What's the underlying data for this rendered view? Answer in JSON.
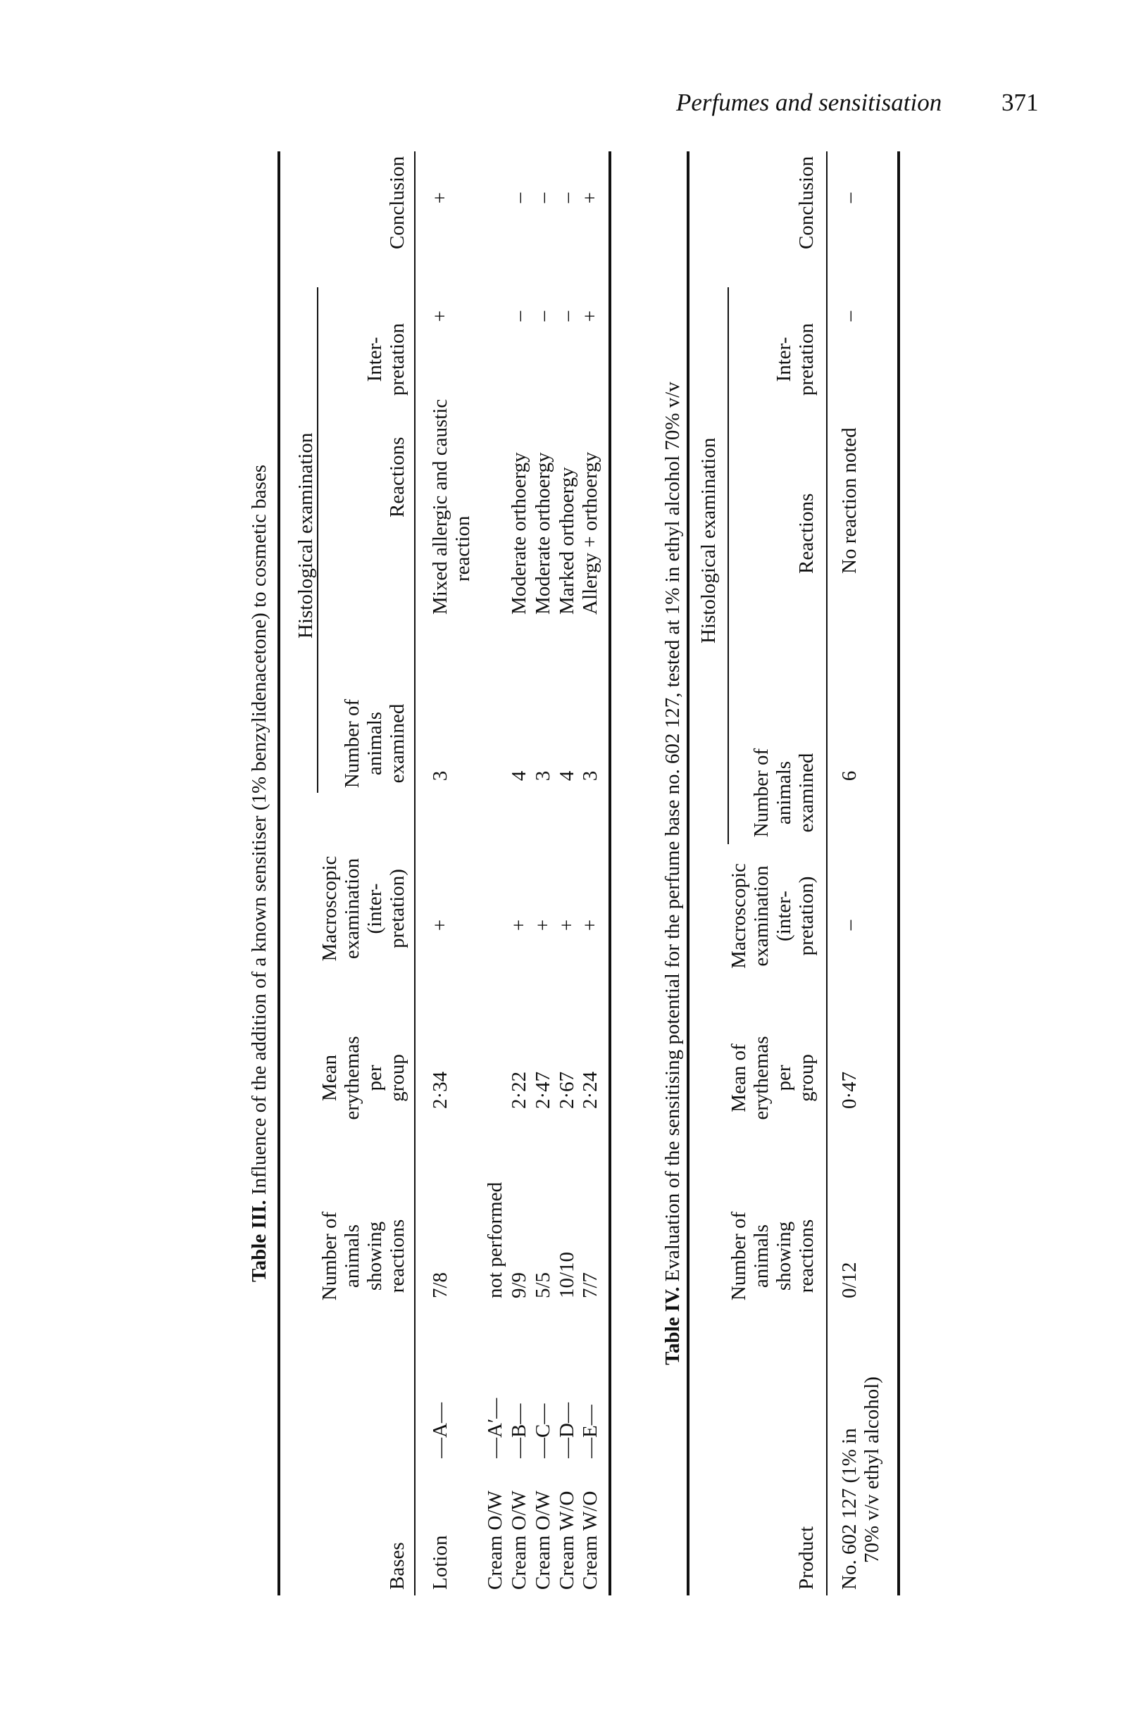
{
  "running_header": {
    "title": "Perfumes and sensitisation",
    "page_number": "371"
  },
  "table3": {
    "label": "Table III.",
    "caption": " Influence of the addition of a known sensitiser (1% benzylidenacetone) to cosmetic bases",
    "group_header": "Histological examination",
    "headers": {
      "bases": "Bases",
      "showing": [
        "Number of",
        "animals",
        "showing",
        "reactions"
      ],
      "mean": [
        "Mean",
        "erythemas",
        "per",
        "group"
      ],
      "macro": [
        "Macroscopic",
        "examination",
        "(inter-",
        "pretation)"
      ],
      "examined": [
        "Number of",
        "animals",
        "examined"
      ],
      "reactions": "Reactions",
      "interp": [
        "Inter-",
        "pretation"
      ],
      "conclusion": "Conclusion"
    },
    "rows": [
      {
        "base": "Lotion",
        "code": "—A—",
        "showing": "7/8",
        "mean": "2·34",
        "macro": "+",
        "examined": "3",
        "reactions": [
          "Mixed allergic and caustic",
          "reaction"
        ],
        "interp": "+",
        "conclusion": "+"
      },
      {
        "base": "Cream O/W",
        "code": "—A′—",
        "showing": "not performed",
        "mean": "",
        "macro": "",
        "examined": "",
        "reactions": [
          ""
        ],
        "interp": "",
        "conclusion": ""
      },
      {
        "base": "Cream O/W",
        "code": "—B—",
        "showing": "9/9",
        "mean": "2·22",
        "macro": "+",
        "examined": "4",
        "reactions": [
          "Moderate orthoergy"
        ],
        "interp": "–",
        "conclusion": "–"
      },
      {
        "base": "Cream O/W",
        "code": "—C—",
        "showing": "5/5",
        "mean": "2·47",
        "macro": "+",
        "examined": "3",
        "reactions": [
          "Moderate orthoergy"
        ],
        "interp": "–",
        "conclusion": "–"
      },
      {
        "base": "Cream W/O",
        "code": "—D—",
        "showing": "10/10",
        "mean": "2·67",
        "macro": "+",
        "examined": "4",
        "reactions": [
          "Marked orthoergy"
        ],
        "interp": "–",
        "conclusion": "–"
      },
      {
        "base": "Cream W/O",
        "code": "—E—",
        "showing": "7/7",
        "mean": "2·24",
        "macro": "+",
        "examined": "3",
        "reactions": [
          "Allergy + orthoergy"
        ],
        "interp": "+",
        "conclusion": "+"
      }
    ]
  },
  "table4": {
    "label": "Table IV.",
    "caption": " Evaluation of the sensitising potential for the perfume base no. 602 127, tested at 1% in ethyl alcohol 70% v/v",
    "group_header": "Histological examination",
    "headers": {
      "product": "Product",
      "showing": [
        "Number of",
        "animals",
        "showing",
        "reactions"
      ],
      "mean": [
        "Mean of",
        "erythemas",
        "per",
        "group"
      ],
      "macro": [
        "Macroscopic",
        "examination",
        "(inter-",
        "pretation)"
      ],
      "examined": [
        "Number of",
        "animals",
        "examined"
      ],
      "reactions": "Reactions",
      "interp": [
        "Inter-",
        "pretation"
      ],
      "conclusion": "Conclusion"
    },
    "rows": [
      {
        "product": [
          "No. 602 127 (1% in",
          "70% v/v ethyl alcohol)"
        ],
        "showing": "0/12",
        "mean": "0·47",
        "macro": "–",
        "examined": "6",
        "reactions": "No reaction noted",
        "interp": "–",
        "conclusion": "–"
      }
    ]
  }
}
